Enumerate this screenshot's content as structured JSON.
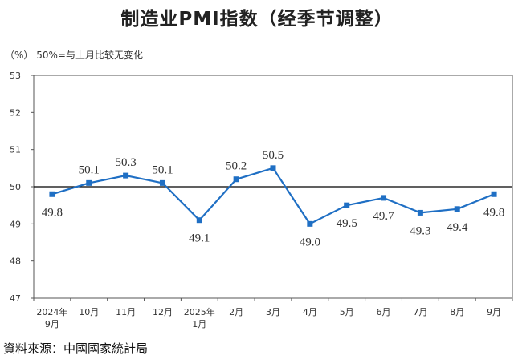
{
  "title": "制造业PMI指数（经季节调整）",
  "unit_note": "（%）  50%=与上月比较无变化",
  "source": "資料來源：中國國家統計局",
  "colors": {
    "line": "#1f6fc4",
    "axis": "#555555",
    "reference": "#000000"
  },
  "chart_data": {
    "type": "line",
    "title": "制造业PMI指数（经季节调整）",
    "xlabel": "",
    "ylabel": "",
    "categories": [
      [
        "2024年",
        "9月"
      ],
      [
        "10月"
      ],
      [
        "11月"
      ],
      [
        "12月"
      ],
      [
        "2025年",
        "1月"
      ],
      [
        "2月"
      ],
      [
        "3月"
      ],
      [
        "4月"
      ],
      [
        "5月"
      ],
      [
        "6月"
      ],
      [
        "7月"
      ],
      [
        "8月"
      ],
      [
        "9月"
      ]
    ],
    "values": [
      49.8,
      50.1,
      50.3,
      50.1,
      49.1,
      50.2,
      50.5,
      49.0,
      49.5,
      49.7,
      49.3,
      49.4,
      49.8
    ],
    "value_labels": [
      "49.8",
      "50.1",
      "50.3",
      "50.1",
      "49.1",
      "50.2",
      "50.5",
      "49.0",
      "49.5",
      "49.7",
      "49.3",
      "49.4",
      "49.8"
    ],
    "ylim": [
      47,
      53
    ],
    "yticks": [
      47,
      48,
      49,
      50,
      51,
      52,
      53
    ],
    "reference_line": 50,
    "grid": false,
    "legend": "none"
  }
}
